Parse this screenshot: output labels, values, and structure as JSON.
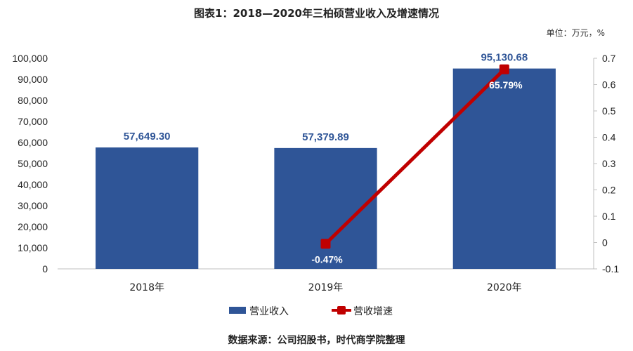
{
  "title": "图表1：2018—2020年三柏硕营业收入及增速情况",
  "unit_note": "单位：万元，%",
  "source": "数据来源：公司招股书，时代商学院整理",
  "colors": {
    "bar": "#2f5597",
    "line": "#c00000",
    "bar_label": "#2f5597"
  },
  "chart_data": {
    "type": "bar",
    "categories": [
      "2018年",
      "2019年",
      "2020年"
    ],
    "series": [
      {
        "name": "营业收入",
        "type": "bar",
        "axis": "left",
        "values": [
          57649.3,
          57379.89,
          95130.68
        ],
        "labels": [
          "57,649.30",
          "57,379.89",
          "95,130.68"
        ]
      },
      {
        "name": "营收增速",
        "type": "line",
        "axis": "right",
        "points": [
          {
            "x": "2019年",
            "y": -0.0047
          },
          {
            "x": "2020年",
            "y": 0.6579
          }
        ],
        "labels": [
          "-0.47%",
          "65.79%"
        ]
      }
    ],
    "y_left": {
      "min": 0,
      "max": 100000,
      "ticks": [
        0,
        10000,
        20000,
        30000,
        40000,
        50000,
        60000,
        70000,
        80000,
        90000,
        100000
      ],
      "tick_labels": [
        "0",
        "10,000",
        "20,000",
        "30,000",
        "40,000",
        "50,000",
        "60,000",
        "70,000",
        "80,000",
        "90,000",
        "100,000"
      ]
    },
    "y_right": {
      "min": -0.1,
      "max": 0.7,
      "ticks": [
        -0.1,
        0,
        0.1,
        0.2,
        0.3,
        0.4,
        0.5,
        0.6,
        0.7
      ],
      "tick_labels": [
        "-0.1",
        "0",
        "0.1",
        "0.2",
        "0.3",
        "0.4",
        "0.5",
        "0.6",
        "0.7"
      ]
    },
    "legend": [
      "营业收入",
      "营收增速"
    ],
    "legend_position": "bottom",
    "grid": false
  }
}
